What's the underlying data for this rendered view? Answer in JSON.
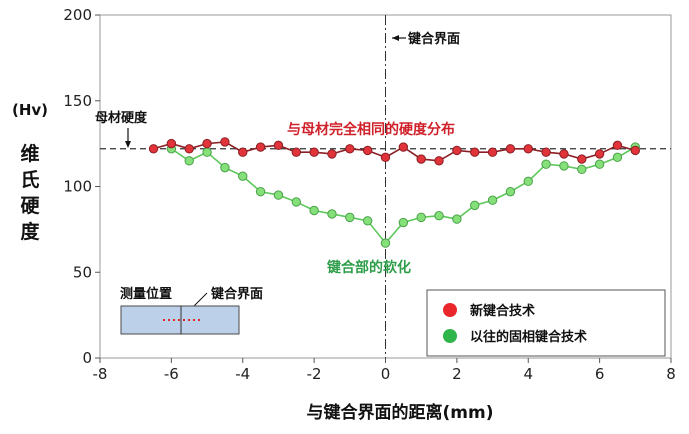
{
  "chart_data": {
    "type": "line",
    "xlabel": "与键合界面的距离(mm)",
    "ylabel_unit": "(Hv)",
    "ylabel": "维氏硬度",
    "xlim": [
      -8,
      8
    ],
    "ylim": [
      0,
      200
    ],
    "xticks": [
      -8,
      -6,
      -4,
      -2,
      0,
      2,
      4,
      6,
      8
    ],
    "yticks": [
      0,
      50,
      100,
      150,
      200
    ],
    "grid": false,
    "legend_position": "bottom-right",
    "series": [
      {
        "name": "新键合技术",
        "color": "#e8262c",
        "x": [
          -6.5,
          -6.0,
          -5.5,
          -5.0,
          -4.5,
          -4.0,
          -3.5,
          -3.0,
          -2.5,
          -2.0,
          -1.5,
          -1.0,
          -0.5,
          0.0,
          0.5,
          1.0,
          1.5,
          2.0,
          2.5,
          3.0,
          3.5,
          4.0,
          4.5,
          5.0,
          5.5,
          6.0,
          6.5,
          7.0
        ],
        "values": [
          122,
          125,
          122,
          125,
          126,
          120,
          123,
          124,
          120,
          120,
          119,
          122,
          121,
          117,
          123,
          116,
          115,
          121,
          120,
          120,
          122,
          122,
          120,
          119,
          116,
          119,
          124,
          121
        ]
      },
      {
        "name": "以往的固相键合技术",
        "color": "#7dd36b",
        "x": [
          -6.0,
          -5.5,
          -5.0,
          -4.5,
          -4.0,
          -3.5,
          -3.0,
          -2.5,
          -2.0,
          -1.5,
          -1.0,
          -0.5,
          0.0,
          0.5,
          1.0,
          1.5,
          2.0,
          2.5,
          3.0,
          3.5,
          4.0,
          4.5,
          5.0,
          5.5,
          6.0,
          6.5,
          7.0
        ],
        "values": [
          122,
          115,
          120,
          111,
          106,
          97,
          95,
          91,
          86,
          84,
          82,
          80,
          67,
          79,
          82,
          83,
          81,
          89,
          92,
          97,
          103,
          113,
          112,
          110,
          113,
          117,
          123
        ]
      }
    ],
    "reference_line": {
      "label": "母材硬度",
      "value": 122
    },
    "vertical_line": {
      "label": "键合界面",
      "x": 0
    },
    "annotations": {
      "red": "与母材完全相同的硬度分布",
      "green": "键合部的软化"
    },
    "inset": {
      "label_left": "测量位置",
      "label_right": "键合界面"
    }
  }
}
